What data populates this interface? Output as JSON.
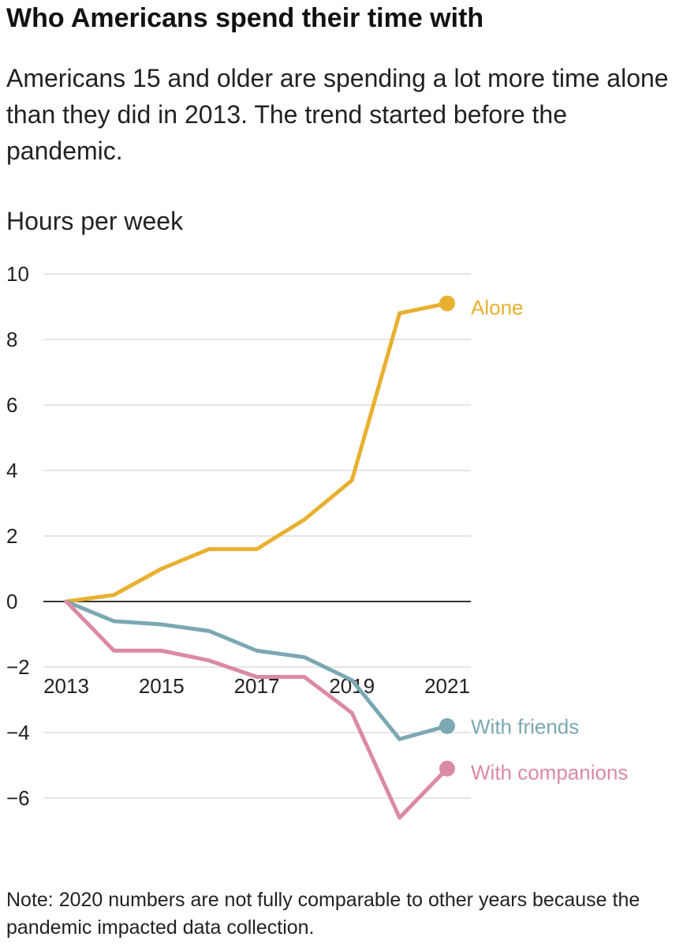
{
  "header": {
    "title": "Who Americans spend their time with",
    "subtitle": "Americans 15 and older are spending a lot more time alone than they did in 2013. The trend started before the pandemic."
  },
  "note": "Note: 2020 numbers are not fully comparable to other years because the pandemic impacted data collection.",
  "chart_data": {
    "type": "line",
    "ylabel": "Hours per week",
    "x": [
      2013,
      2014,
      2015,
      2016,
      2017,
      2018,
      2019,
      2020,
      2021
    ],
    "xticks": [
      2013,
      2015,
      2017,
      2019,
      2021
    ],
    "xtick_labels": [
      "2013",
      "2015",
      "2017",
      "2019",
      "2021"
    ],
    "yticks": [
      10,
      8,
      6,
      4,
      2,
      0,
      -2,
      -4,
      -6
    ],
    "ytick_labels": [
      "10",
      "8",
      "6",
      "4",
      "2",
      "0",
      "−2",
      "−4",
      "−6"
    ],
    "ylim": [
      -6.8,
      10
    ],
    "xlim": [
      2013,
      2021
    ],
    "grid": true,
    "legend": "direct labels at line ends",
    "series": [
      {
        "name": "Alone",
        "color": "#E8B030",
        "values": [
          0,
          0.2,
          1.0,
          1.6,
          1.6,
          2.5,
          3.7,
          8.8,
          9.1
        ]
      },
      {
        "name": "With friends",
        "color": "#7BA8B2",
        "values": [
          0,
          -0.6,
          -0.7,
          -0.9,
          -1.5,
          -1.7,
          -2.4,
          -4.2,
          -3.8
        ]
      },
      {
        "name": "With companions",
        "color": "#DB8AA3",
        "values": [
          0,
          -1.5,
          -1.5,
          -1.8,
          -2.3,
          -2.3,
          -3.4,
          -6.6,
          -5.1
        ]
      }
    ]
  }
}
